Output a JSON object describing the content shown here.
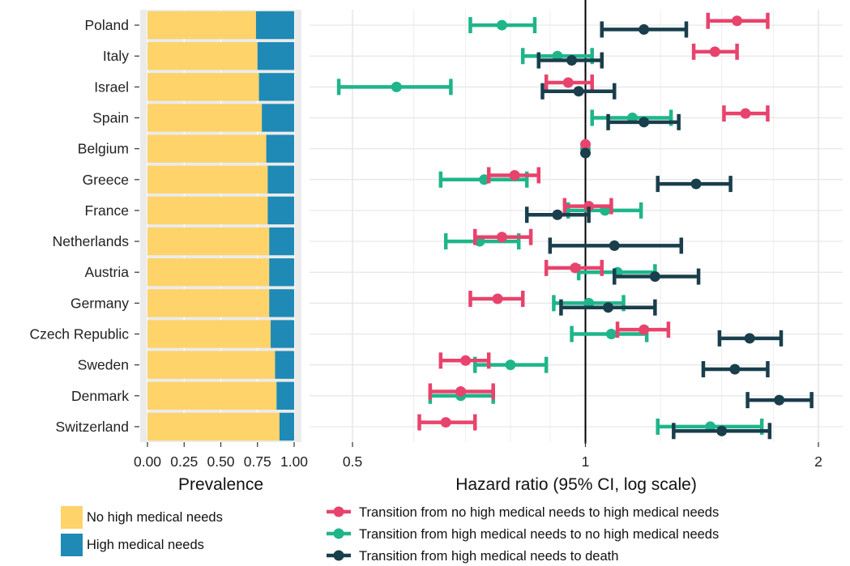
{
  "chart_data": [
    {
      "type": "bar",
      "stacked": true,
      "orientation": "horizontal",
      "categories": [
        "Poland",
        "Italy",
        "Israel",
        "Spain",
        "Belgium",
        "Greece",
        "France",
        "Netherlands",
        "Austria",
        "Germany",
        "Czech Republic",
        "Sweden",
        "Denmark",
        "Switzerland"
      ],
      "series": [
        {
          "name": "No high medical needs",
          "color": "#FDD36A",
          "values": [
            0.74,
            0.75,
            0.76,
            0.78,
            0.81,
            0.82,
            0.82,
            0.83,
            0.83,
            0.83,
            0.84,
            0.87,
            0.88,
            0.9
          ]
        },
        {
          "name": "High medical needs",
          "color": "#1F8AB5",
          "values": [
            0.26,
            0.25,
            0.24,
            0.22,
            0.19,
            0.18,
            0.18,
            0.17,
            0.17,
            0.17,
            0.16,
            0.13,
            0.12,
            0.1
          ]
        }
      ],
      "xlabel": "Prevalence",
      "xlim": [
        0,
        1
      ],
      "xticks": [
        "0.00",
        "0.25",
        "0.50",
        "0.75",
        "1.00"
      ],
      "legend_position": "bottom-left",
      "grid": true
    },
    {
      "type": "scatter",
      "subtype": "forest",
      "x_scale": "log",
      "categories": [
        "Poland",
        "Italy",
        "Israel",
        "Spain",
        "Belgium",
        "Greece",
        "France",
        "Netherlands",
        "Austria",
        "Germany",
        "Czech Republic",
        "Sweden",
        "Denmark",
        "Switzerland"
      ],
      "xlabel": "Hazard ratio (95% CI, log scale)",
      "xlim": [
        0.44,
        2.15
      ],
      "xticks": [
        0.5,
        1,
        2
      ],
      "reference_line": 1,
      "legend_position": "bottom",
      "grid": true,
      "series": [
        {
          "name": "Transition from no high medical needs to high medical needs",
          "color": "#E8436D",
          "estimate": [
            1.57,
            1.47,
            0.95,
            1.61,
            1.0,
            0.81,
            1.01,
            0.78,
            0.97,
            0.77,
            1.19,
            0.7,
            0.69,
            0.66
          ],
          "lower": [
            1.44,
            1.38,
            0.89,
            1.51,
            1.0,
            0.75,
            0.94,
            0.72,
            0.89,
            0.71,
            1.1,
            0.65,
            0.63,
            0.61
          ],
          "upper": [
            1.72,
            1.57,
            1.02,
            1.72,
            1.0,
            0.87,
            1.08,
            0.85,
            1.05,
            0.83,
            1.28,
            0.75,
            0.76,
            0.72
          ]
        },
        {
          "name": "Transition from high medical needs to no high medical needs",
          "color": "#1FB58A",
          "estimate": [
            0.78,
            0.92,
            0.57,
            1.15,
            1.0,
            0.74,
            1.06,
            0.73,
            1.1,
            1.01,
            1.08,
            0.8,
            0.69,
            1.45
          ],
          "lower": [
            0.71,
            0.83,
            0.48,
            1.02,
            1.0,
            0.65,
            0.95,
            0.66,
            0.98,
            0.91,
            0.96,
            0.72,
            0.63,
            1.24
          ],
          "upper": [
            0.86,
            1.02,
            0.67,
            1.29,
            1.0,
            0.84,
            1.18,
            0.82,
            1.23,
            1.12,
            1.2,
            0.89,
            0.76,
            1.69
          ]
        },
        {
          "name": "Transition from high medical needs to death",
          "color": "#193E4C",
          "estimate": [
            1.19,
            0.96,
            0.98,
            1.19,
            1.0,
            1.39,
            0.92,
            1.09,
            1.23,
            1.07,
            1.63,
            1.56,
            1.78,
            1.5
          ],
          "lower": [
            1.05,
            0.87,
            0.88,
            1.07,
            1.0,
            1.24,
            0.84,
            0.9,
            1.09,
            0.93,
            1.49,
            1.42,
            1.62,
            1.3
          ],
          "upper": [
            1.35,
            1.05,
            1.09,
            1.32,
            1.0,
            1.54,
            1.01,
            1.33,
            1.4,
            1.23,
            1.79,
            1.72,
            1.96,
            1.73
          ]
        }
      ]
    }
  ]
}
